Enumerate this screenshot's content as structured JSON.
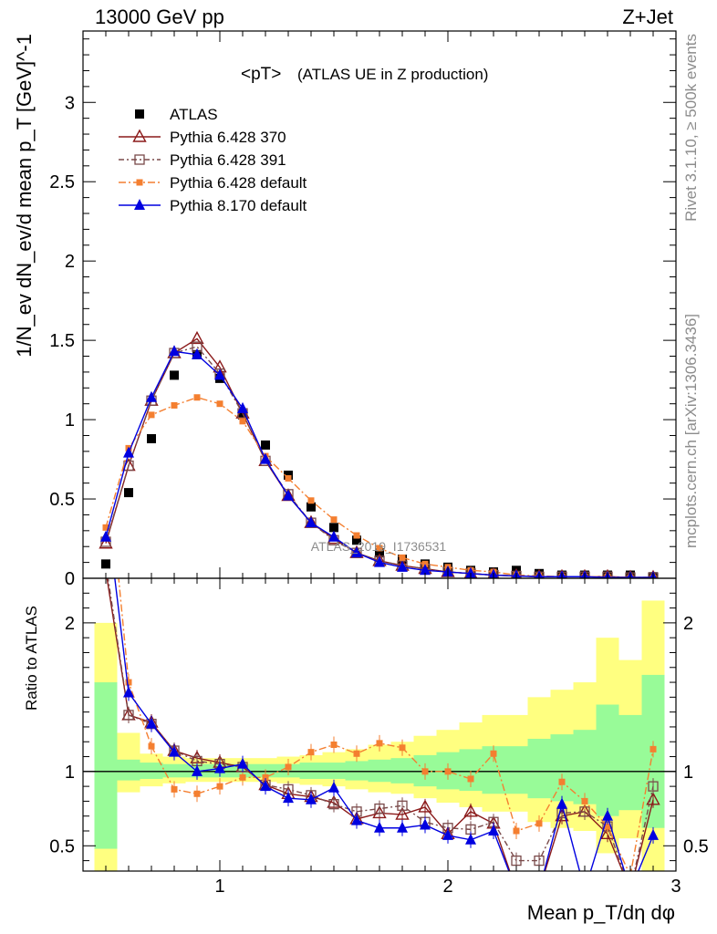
{
  "header": {
    "left": "13000 GeV pp",
    "right": "Z+Jet"
  },
  "side_labels": {
    "rivet": "Rivet 3.1.10, ≥ 500k events",
    "mcplots": "mcplots.cern.ch [arXiv:1306.3436]"
  },
  "watermark": "ATLAS_2019_I1736531",
  "chart_data": [
    {
      "type": "line",
      "title_main": "<pT>",
      "title_sub": "(ATLAS UE in Z production)",
      "ylabel": "1/N_ev dN_ev/d mean p_T [GeV]^-1",
      "xlim": [
        0.4,
        3.0
      ],
      "ylim": [
        0,
        3.45
      ],
      "yticks": [
        0,
        0.5,
        1,
        1.5,
        2,
        2.5,
        3
      ],
      "ytick_labels": [
        "0",
        "0.5",
        "1",
        "1.5",
        "2",
        "2.5",
        "3"
      ],
      "x": [
        0.5,
        0.6,
        0.7,
        0.8,
        0.9,
        1.0,
        1.1,
        1.2,
        1.3,
        1.4,
        1.5,
        1.6,
        1.7,
        1.8,
        1.9,
        2.0,
        2.1,
        2.2,
        2.3,
        2.4,
        2.5,
        2.6,
        2.7,
        2.8,
        2.9
      ],
      "legend_placement": "top-left",
      "series": [
        {
          "name": "ATLAS",
          "color": "#000000",
          "marker": "square-filled",
          "values": [
            0.09,
            0.54,
            0.88,
            1.28,
            1.41,
            1.26,
            1.03,
            0.84,
            0.65,
            0.45,
            0.32,
            0.24,
            0.16,
            0.12,
            0.09,
            0.07,
            0.05,
            0.04,
            0.05,
            0.03,
            0.02,
            0.02,
            0.02,
            0.02,
            0.01
          ]
        },
        {
          "name": "Pythia 6.428 370",
          "color": "#8b1a1a",
          "marker": "triangle-open",
          "dash": "",
          "values": [
            0.22,
            0.71,
            1.12,
            1.42,
            1.51,
            1.33,
            1.04,
            0.74,
            0.52,
            0.35,
            0.25,
            0.16,
            0.11,
            0.08,
            0.06,
            0.04,
            0.03,
            0.02,
            0.015,
            0.01,
            0.01,
            0.01,
            0.01,
            0.005,
            0.005
          ]
        },
        {
          "name": "Pythia 6.428 391",
          "color": "#7a4a4a",
          "marker": "square-open",
          "dash": "6,3,2,3",
          "values": [
            0.23,
            0.71,
            1.12,
            1.42,
            1.46,
            1.29,
            1.04,
            0.74,
            0.53,
            0.35,
            0.24,
            0.16,
            0.11,
            0.08,
            0.06,
            0.04,
            0.03,
            0.02,
            0.015,
            0.01,
            0.01,
            0.01,
            0.01,
            0.005,
            0.005
          ]
        },
        {
          "name": "Pythia 6.428 default",
          "color": "#f47f30",
          "marker": "square-small-filled",
          "dash": "8,3,2,3",
          "values": [
            0.32,
            0.82,
            1.03,
            1.09,
            1.14,
            1.1,
            0.99,
            0.77,
            0.63,
            0.49,
            0.37,
            0.27,
            0.19,
            0.13,
            0.09,
            0.07,
            0.05,
            0.04,
            0.02,
            0.015,
            0.01,
            0.01,
            0.01,
            0.005,
            0.005
          ]
        },
        {
          "name": "Pythia 8.170 default",
          "color": "#0000e0",
          "marker": "triangle-filled",
          "dash": "",
          "values": [
            0.26,
            0.79,
            1.14,
            1.43,
            1.41,
            1.28,
            1.07,
            0.75,
            0.52,
            0.35,
            0.26,
            0.16,
            0.1,
            0.07,
            0.05,
            0.04,
            0.03,
            0.02,
            0.015,
            0.01,
            0.01,
            0.01,
            0.005,
            0.005,
            0.005
          ]
        }
      ]
    },
    {
      "type": "line",
      "ylabel": "Ratio to ATLAS",
      "xlabel": "Mean p_T/dη dφ",
      "xlim": [
        0.4,
        3.0
      ],
      "ylim": [
        0.33,
        2.3
      ],
      "xticks": [
        1,
        2,
        3
      ],
      "xtick_labels": [
        "1",
        "2",
        "3"
      ],
      "yticks": [
        0.5,
        1,
        2
      ],
      "ytick_labels": [
        "0.5",
        "1",
        "2"
      ],
      "reference_line": 1,
      "band_edges": [
        0.45,
        0.55,
        0.65,
        0.75,
        0.85,
        0.95,
        1.05,
        1.15,
        1.25,
        1.35,
        1.45,
        1.55,
        1.65,
        1.75,
        1.85,
        1.95,
        2.05,
        2.15,
        2.25,
        2.35,
        2.45,
        2.55,
        2.65,
        2.75,
        2.85,
        2.95
      ],
      "band_yellow_hi": [
        2.0,
        1.26,
        1.12,
        1.1,
        1.09,
        1.09,
        1.09,
        1.09,
        1.1,
        1.11,
        1.13,
        1.15,
        1.18,
        1.2,
        1.24,
        1.28,
        1.33,
        1.38,
        1.38,
        1.5,
        1.55,
        1.6,
        1.9,
        1.75,
        2.15
      ],
      "band_yellow_lo": [
        0.3,
        0.86,
        0.9,
        0.92,
        0.93,
        0.93,
        0.93,
        0.93,
        0.92,
        0.91,
        0.9,
        0.88,
        0.86,
        0.85,
        0.82,
        0.79,
        0.76,
        0.73,
        0.73,
        0.66,
        0.62,
        0.6,
        0.45,
        0.55,
        0.3
      ],
      "band_green_hi": [
        1.6,
        1.08,
        1.06,
        1.05,
        1.05,
        1.05,
        1.05,
        1.05,
        1.05,
        1.06,
        1.06,
        1.07,
        1.08,
        1.09,
        1.11,
        1.13,
        1.15,
        1.17,
        1.17,
        1.22,
        1.25,
        1.28,
        1.45,
        1.38,
        1.65
      ],
      "band_green_lo": [
        0.48,
        0.94,
        0.95,
        0.96,
        0.96,
        0.96,
        0.96,
        0.96,
        0.96,
        0.95,
        0.95,
        0.94,
        0.93,
        0.92,
        0.9,
        0.88,
        0.87,
        0.85,
        0.85,
        0.82,
        0.8,
        0.78,
        0.7,
        0.74,
        0.62
      ],
      "series": [
        {
          "name": "Pythia 6.428 370",
          "color": "#8b1a1a",
          "marker": "triangle-open",
          "values": [
            2.35,
            1.38,
            1.33,
            1.14,
            1.09,
            1.06,
            1.03,
            0.91,
            0.85,
            0.83,
            0.79,
            0.68,
            0.72,
            0.71,
            0.76,
            0.58,
            0.73,
            0.65,
            0.2,
            0.2,
            0.7,
            0.73,
            0.58,
            0.2,
            0.81
          ]
        },
        {
          "name": "Pythia 6.428 391",
          "color": "#7a4a4a",
          "marker": "square-open",
          "values": [
            2.4,
            1.38,
            1.32,
            1.14,
            1.07,
            1.05,
            1.03,
            0.91,
            0.88,
            0.84,
            0.78,
            0.73,
            0.75,
            0.77,
            0.66,
            0.62,
            0.61,
            0.66,
            0.4,
            0.4,
            0.72,
            0.73,
            0.63,
            0.2,
            0.9
          ]
        },
        {
          "name": "Pythia 6.428 default",
          "color": "#f47f30",
          "marker": "square-small-filled",
          "values": [
            3.2,
            1.6,
            1.17,
            0.88,
            0.85,
            0.9,
            0.96,
            0.96,
            1.03,
            1.13,
            1.18,
            1.12,
            1.19,
            1.16,
            1.0,
            1.0,
            0.95,
            1.12,
            0.6,
            0.65,
            0.93,
            0.8,
            0.63,
            0.3,
            1.15
          ]
        },
        {
          "name": "Pythia 8.170 default",
          "color": "#0000e0",
          "marker": "triangle-filled",
          "values": [
            2.8,
            1.53,
            1.32,
            1.13,
            1.0,
            1.02,
            1.05,
            0.9,
            0.82,
            0.81,
            0.89,
            0.67,
            0.62,
            0.62,
            0.64,
            0.57,
            0.54,
            0.6,
            0.2,
            0.2,
            0.78,
            0.2,
            0.7,
            0.2,
            0.57
          ]
        }
      ]
    }
  ]
}
